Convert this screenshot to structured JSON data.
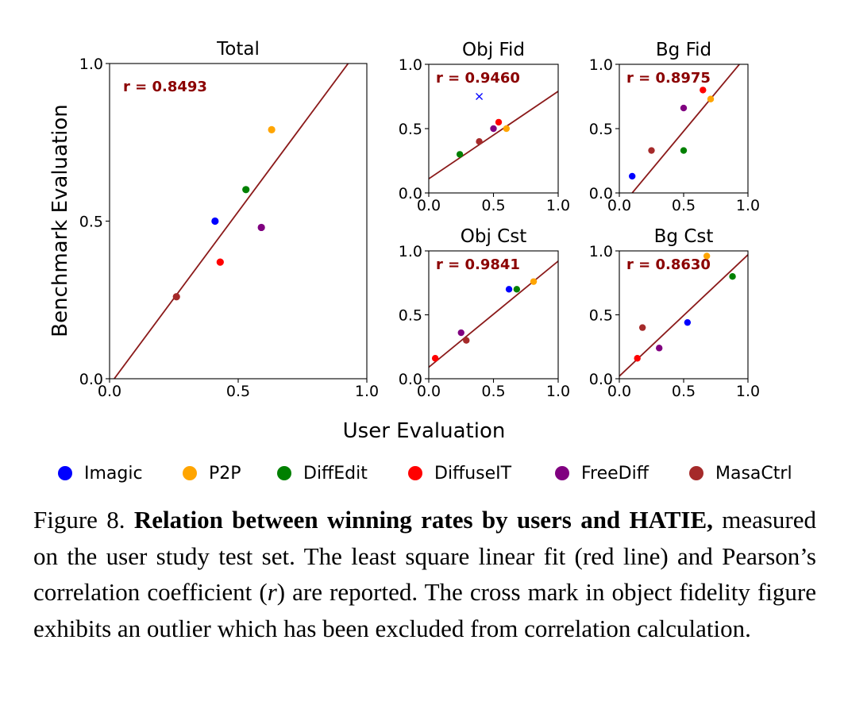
{
  "colors": {
    "Imagic": "#0000ff",
    "P2P": "#ffa500",
    "DiffEdit": "#008000",
    "DiffuseIT": "#ff0000",
    "FreeDiff": "#800080",
    "MasaCtrl": "#a52a2a",
    "fit_line": "#8b1a1a",
    "r_text": "#8b0000"
  },
  "xlabel": "User Evaluation",
  "ylabel": "Benchmark Evaluation",
  "legend": {
    "placement": "bottom",
    "entries": [
      "Imagic",
      "P2P",
      "DiffEdit",
      "DiffuseIT",
      "FreeDiff",
      "MasaCtrl"
    ]
  },
  "chart_data": [
    {
      "type": "scatter",
      "title": "Total",
      "annotation": "r = 0.8493",
      "xlim": [
        0,
        1
      ],
      "ylim": [
        0,
        1
      ],
      "xticks": [
        "0.0",
        "0.5",
        "1.0"
      ],
      "yticks": [
        "0.0",
        "0.5",
        "1.0"
      ],
      "fit_line": {
        "slope": 1.1,
        "intercept": -0.02
      },
      "points": [
        {
          "series": "Imagic",
          "x": 0.41,
          "y": 0.5
        },
        {
          "series": "P2P",
          "x": 0.63,
          "y": 0.79
        },
        {
          "series": "DiffEdit",
          "x": 0.53,
          "y": 0.6
        },
        {
          "series": "DiffuseIT",
          "x": 0.43,
          "y": 0.37
        },
        {
          "series": "FreeDiff",
          "x": 0.59,
          "y": 0.48
        },
        {
          "series": "MasaCtrl",
          "x": 0.26,
          "y": 0.26
        }
      ]
    },
    {
      "type": "scatter",
      "title": "Obj Fid",
      "annotation": "r = 0.9460",
      "xlim": [
        0,
        1
      ],
      "ylim": [
        0,
        1
      ],
      "xticks": [
        "0.0",
        "0.5",
        "1.0"
      ],
      "yticks": [
        "0.0",
        "0.5",
        "1.0"
      ],
      "fit_line": {
        "slope": 0.68,
        "intercept": 0.11
      },
      "points": [
        {
          "series": "DiffEdit",
          "x": 0.24,
          "y": 0.3
        },
        {
          "series": "MasaCtrl",
          "x": 0.39,
          "y": 0.4
        },
        {
          "series": "FreeDiff",
          "x": 0.5,
          "y": 0.5
        },
        {
          "series": "DiffuseIT",
          "x": 0.54,
          "y": 0.55
        },
        {
          "series": "P2P",
          "x": 0.6,
          "y": 0.5
        }
      ],
      "outliers": [
        {
          "series": "Imagic",
          "x": 0.39,
          "y": 0.75,
          "marker": "x"
        }
      ]
    },
    {
      "type": "scatter",
      "title": "Bg Fid",
      "annotation": "r = 0.8975",
      "xlim": [
        0,
        1
      ],
      "ylim": [
        0,
        1
      ],
      "xticks": [
        "0.0",
        "0.5",
        "1.0"
      ],
      "yticks": [
        "0.0",
        "0.5",
        "1.0"
      ],
      "fit_line": {
        "slope": 1.2,
        "intercept": -0.12
      },
      "points": [
        {
          "series": "Imagic",
          "x": 0.1,
          "y": 0.13
        },
        {
          "series": "MasaCtrl",
          "x": 0.25,
          "y": 0.33
        },
        {
          "series": "DiffEdit",
          "x": 0.5,
          "y": 0.33
        },
        {
          "series": "FreeDiff",
          "x": 0.5,
          "y": 0.66
        },
        {
          "series": "DiffuseIT",
          "x": 0.65,
          "y": 0.8
        },
        {
          "series": "P2P",
          "x": 0.71,
          "y": 0.73
        }
      ]
    },
    {
      "type": "scatter",
      "title": "Obj Cst",
      "annotation": "r = 0.9841",
      "xlim": [
        0,
        1
      ],
      "ylim": [
        0,
        1
      ],
      "xticks": [
        "0.0",
        "0.5",
        "1.0"
      ],
      "yticks": [
        "0.0",
        "0.5",
        "1.0"
      ],
      "fit_line": {
        "slope": 0.83,
        "intercept": 0.09
      },
      "points": [
        {
          "series": "DiffuseIT",
          "x": 0.05,
          "y": 0.16
        },
        {
          "series": "FreeDiff",
          "x": 0.25,
          "y": 0.36
        },
        {
          "series": "MasaCtrl",
          "x": 0.29,
          "y": 0.3
        },
        {
          "series": "Imagic",
          "x": 0.62,
          "y": 0.7
        },
        {
          "series": "DiffEdit",
          "x": 0.68,
          "y": 0.7
        },
        {
          "series": "P2P",
          "x": 0.81,
          "y": 0.76
        }
      ]
    },
    {
      "type": "scatter",
      "title": "Bg Cst",
      "annotation": "r = 0.8630",
      "xlim": [
        0,
        1
      ],
      "ylim": [
        0,
        1
      ],
      "xticks": [
        "0.0",
        "0.5",
        "1.0"
      ],
      "yticks": [
        "0.0",
        "0.5",
        "1.0"
      ],
      "fit_line": {
        "slope": 0.95,
        "intercept": 0.02
      },
      "points": [
        {
          "series": "DiffuseIT",
          "x": 0.14,
          "y": 0.16
        },
        {
          "series": "MasaCtrl",
          "x": 0.18,
          "y": 0.4
        },
        {
          "series": "FreeDiff",
          "x": 0.31,
          "y": 0.24
        },
        {
          "series": "Imagic",
          "x": 0.53,
          "y": 0.44
        },
        {
          "series": "P2P",
          "x": 0.68,
          "y": 0.96
        },
        {
          "series": "DiffEdit",
          "x": 0.88,
          "y": 0.8
        }
      ]
    }
  ],
  "caption": {
    "label": "Figure 8.",
    "bold": "Relation between winning rates by users and HATIE,",
    "text_before_r": "measured on the user study test set. The least square linear fit (red line) and Pearson’s correlation coefficient (",
    "r_symbol": "r",
    "text_after_r": ") are reported.  The cross mark in object fidelity figure exhibits an outlier which has been excluded from correlation calculation."
  }
}
